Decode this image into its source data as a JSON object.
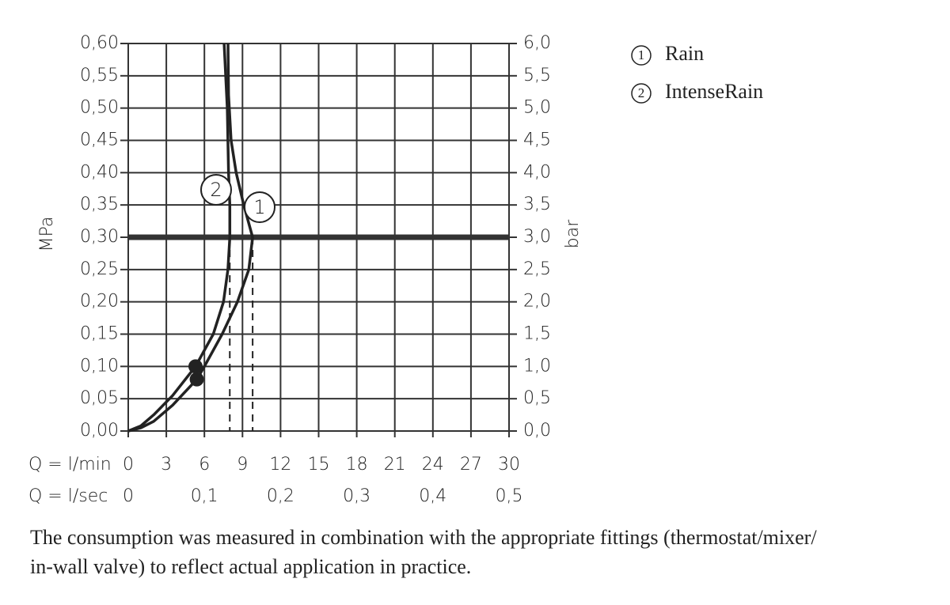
{
  "chart_data": {
    "type": "line",
    "x_row_labels": [
      "Q = l/min",
      "Q = l/sec"
    ],
    "ylabel": "MPa",
    "y2label": "bar",
    "xlim": [
      0,
      30
    ],
    "xticks": [
      0,
      3,
      6,
      9,
      12,
      15,
      18,
      21,
      24,
      27,
      30
    ],
    "x2lim": [
      0,
      0.5
    ],
    "x2ticks": [
      0,
      {
        "value": 0.1,
        "label": "0,1"
      },
      {
        "value": 0.2,
        "label": "0,2"
      },
      {
        "value": 0.3,
        "label": "0,3"
      },
      {
        "value": 0.4,
        "label": "0,4"
      },
      {
        "value": 0.5,
        "label": "0,5"
      }
    ],
    "ylim": [
      0,
      0.6
    ],
    "yticks": [
      {
        "value": 0,
        "label": "0,00"
      },
      {
        "value": 0.05,
        "label": "0,05"
      },
      {
        "value": 0.1,
        "label": "0,10"
      },
      {
        "value": 0.15,
        "label": "0,15"
      },
      {
        "value": 0.2,
        "label": "0,20"
      },
      {
        "value": 0.25,
        "label": "0,25"
      },
      {
        "value": 0.3,
        "label": "0,30"
      },
      {
        "value": 0.35,
        "label": "0,35"
      },
      {
        "value": 0.4,
        "label": "0,40"
      },
      {
        "value": 0.45,
        "label": "0,45"
      },
      {
        "value": 0.5,
        "label": "0,50"
      },
      {
        "value": 0.55,
        "label": "0,55"
      },
      {
        "value": 0.6,
        "label": "0,60"
      }
    ],
    "y2lim": [
      0,
      6
    ],
    "y2ticks": [
      {
        "value": 0,
        "label": "0,0"
      },
      {
        "value": 0.5,
        "label": "0,5"
      },
      {
        "value": 1,
        "label": "1,0"
      },
      {
        "value": 1.5,
        "label": "1,5"
      },
      {
        "value": 2,
        "label": "2,0"
      },
      {
        "value": 2.5,
        "label": "2,5"
      },
      {
        "value": 3,
        "label": "3,0"
      },
      {
        "value": 3.5,
        "label": "3,5"
      },
      {
        "value": 4,
        "label": "4,0"
      },
      {
        "value": 4.5,
        "label": "4,5"
      },
      {
        "value": 5,
        "label": "5,0"
      },
      {
        "value": 5.5,
        "label": "5,5"
      },
      {
        "value": 6,
        "label": "6,0"
      }
    ],
    "grid": true,
    "hline": 0.3,
    "series": [
      {
        "name": "Rain",
        "label": "1",
        "color": "#222222",
        "x": [
          0,
          1,
          2,
          3.5,
          5.4,
          6,
          7.4,
          8.6,
          9.5,
          9.8,
          9.1,
          8.5,
          8.1,
          7.9,
          7.86
        ],
        "values": [
          0,
          0.005,
          0.015,
          0.04,
          0.08,
          0.1,
          0.15,
          0.2,
          0.25,
          0.3,
          0.35,
          0.4,
          0.45,
          0.52,
          0.6
        ],
        "dot": [
          5.4,
          0.08
        ],
        "rated_flow": 9.8
      },
      {
        "name": "IntenseRain",
        "label": "2",
        "color": "#222222",
        "x": [
          0,
          1,
          2,
          3.5,
          5.3,
          6.7,
          7.5,
          7.85,
          8.0,
          8.0,
          7.9,
          7.8,
          7.55
        ],
        "values": [
          0,
          0.008,
          0.025,
          0.055,
          0.1,
          0.15,
          0.2,
          0.25,
          0.3,
          0.35,
          0.4,
          0.5,
          0.6
        ],
        "dot": [
          5.3,
          0.1
        ],
        "rated_flow": 8.0
      }
    ],
    "footnote": [
      "The consumption was measured in combination with the appropriate fittings (thermostat/mixer/",
      "in-wall valve) to reflect actual application in practice."
    ]
  }
}
